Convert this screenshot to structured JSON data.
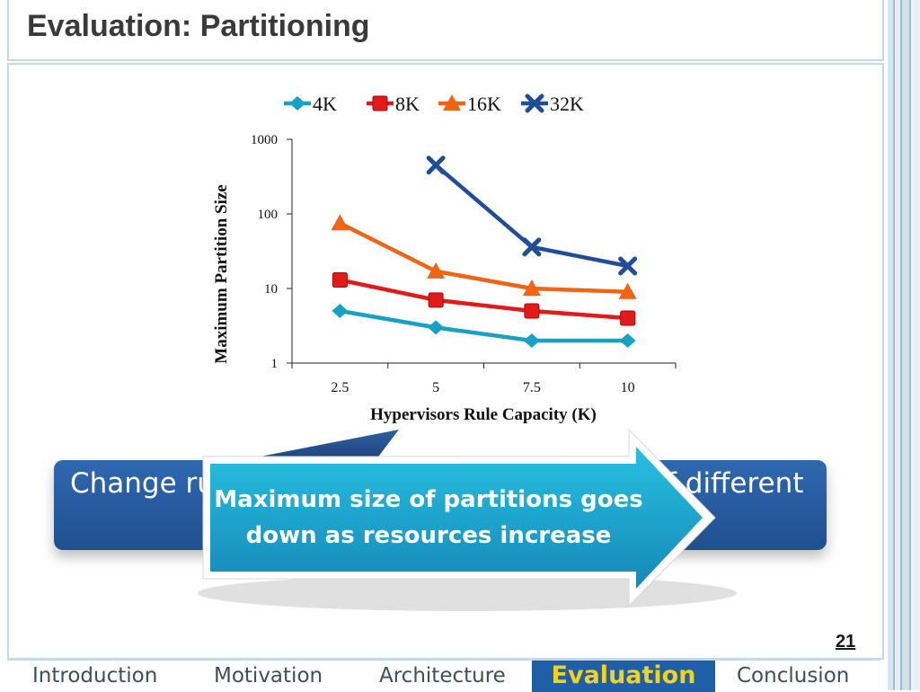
{
  "slide": {
    "title": "Evaluation: Partitioning",
    "page_number": "21",
    "banner_left": "Change ru",
    "banner_right": "f different",
    "callout_line1": "Maximum size of partitions goes",
    "callout_line2": "down as resources increase"
  },
  "nav": {
    "items": [
      "Introduction",
      "Motivation",
      "Architecture",
      "Evaluation",
      "Conclusion"
    ],
    "active": "Evaluation"
  },
  "colors": {
    "4K": "#17a2c4",
    "8K": "#e01b1b",
    "16K": "#f06414",
    "32K": "#1f4e96",
    "nav_active_bg": "#1f5fa8",
    "nav_active_text": "#f3d21c"
  },
  "chart_data": {
    "type": "line",
    "xlabel": "Hypervisors Rule Capacity (K)",
    "ylabel": "Maximum Partition Size",
    "y_scale": "log",
    "ylim": [
      1,
      1000
    ],
    "y_ticks": [
      "1",
      "10",
      "100",
      "1000"
    ],
    "categories": [
      "2.5",
      "5",
      "7.5",
      "10"
    ],
    "legend_position": "top",
    "series": [
      {
        "name": "4K",
        "marker": "diamond",
        "values": [
          5,
          3,
          2,
          2
        ]
      },
      {
        "name": "8K",
        "marker": "square",
        "values": [
          13,
          7,
          5,
          4
        ]
      },
      {
        "name": "16K",
        "marker": "triangle",
        "values": [
          75,
          17,
          10,
          9
        ]
      },
      {
        "name": "32K",
        "marker": "x",
        "values": [
          null,
          450,
          36,
          20
        ]
      }
    ]
  }
}
